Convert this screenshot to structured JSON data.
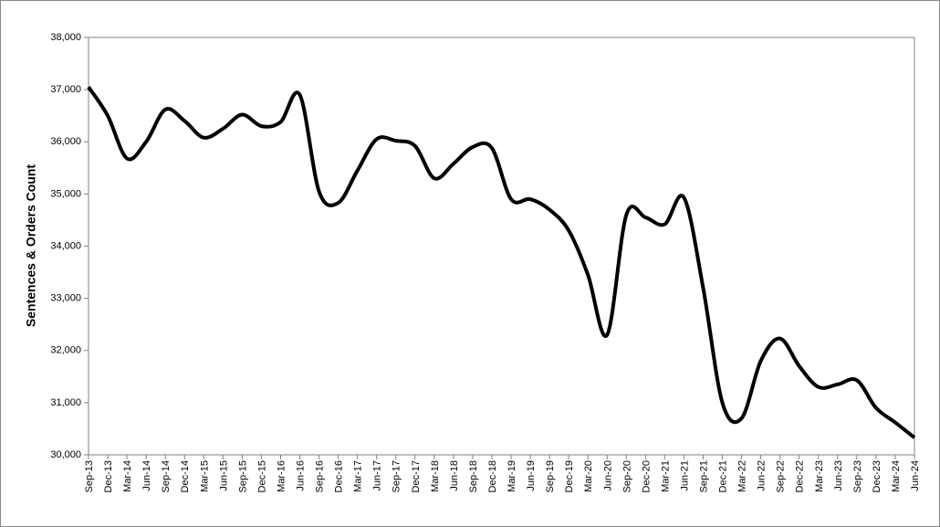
{
  "chart_data": {
    "type": "line",
    "y_label": "Sentences & Orders Count",
    "categories": [
      "Sep-13",
      "Dec-13",
      "Mar-14",
      "Jun-14",
      "Sep-14",
      "Dec-14",
      "Mar-15",
      "Jun-15",
      "Sep-15",
      "Dec-15",
      "Mar-16",
      "Jun-16",
      "Sep-16",
      "Dec-16",
      "Mar-17",
      "Jun-17",
      "Sep-17",
      "Dec-17",
      "Mar-18",
      "Jun-18",
      "Sep-18",
      "Dec-18",
      "Mar-19",
      "Jun-19",
      "Sep-19",
      "Dec-19",
      "Mar-20",
      "Jun-20",
      "Sep-20",
      "Dec-20",
      "Mar-21",
      "Jun-21",
      "Sep-21",
      "Dec-21",
      "Mar-22",
      "Jun-22",
      "Sep-22",
      "Dec-22",
      "Mar-23",
      "Jun-23",
      "Sep-23",
      "Dec-23",
      "Mar-24",
      "Jun-24"
    ],
    "values": [
      37050,
      36500,
      35680,
      36000,
      36620,
      36400,
      36080,
      36250,
      36520,
      36300,
      36380,
      36900,
      35050,
      34830,
      35450,
      36050,
      36020,
      35920,
      35300,
      35580,
      35900,
      35880,
      34900,
      34900,
      34700,
      34300,
      33450,
      32300,
      34600,
      34550,
      34420,
      34930,
      33200,
      31000,
      30700,
      31800,
      32230,
      31700,
      31300,
      31350,
      31430,
      30900,
      30620,
      30330
    ],
    "color": "#000000",
    "smooth": true,
    "ylim": [
      30000,
      38000
    ],
    "yticks": [
      {
        "value": 30000,
        "label": "30,000"
      },
      {
        "value": 31000,
        "label": "31,000"
      },
      {
        "value": 32000,
        "label": "32,000"
      },
      {
        "value": 33000,
        "label": "33,000"
      },
      {
        "value": 34000,
        "label": "34,000"
      },
      {
        "value": 35000,
        "label": "35,000"
      },
      {
        "value": 36000,
        "label": "36,000"
      },
      {
        "value": 37000,
        "label": "37,000"
      },
      {
        "value": 38000,
        "label": "38,000"
      }
    ]
  }
}
